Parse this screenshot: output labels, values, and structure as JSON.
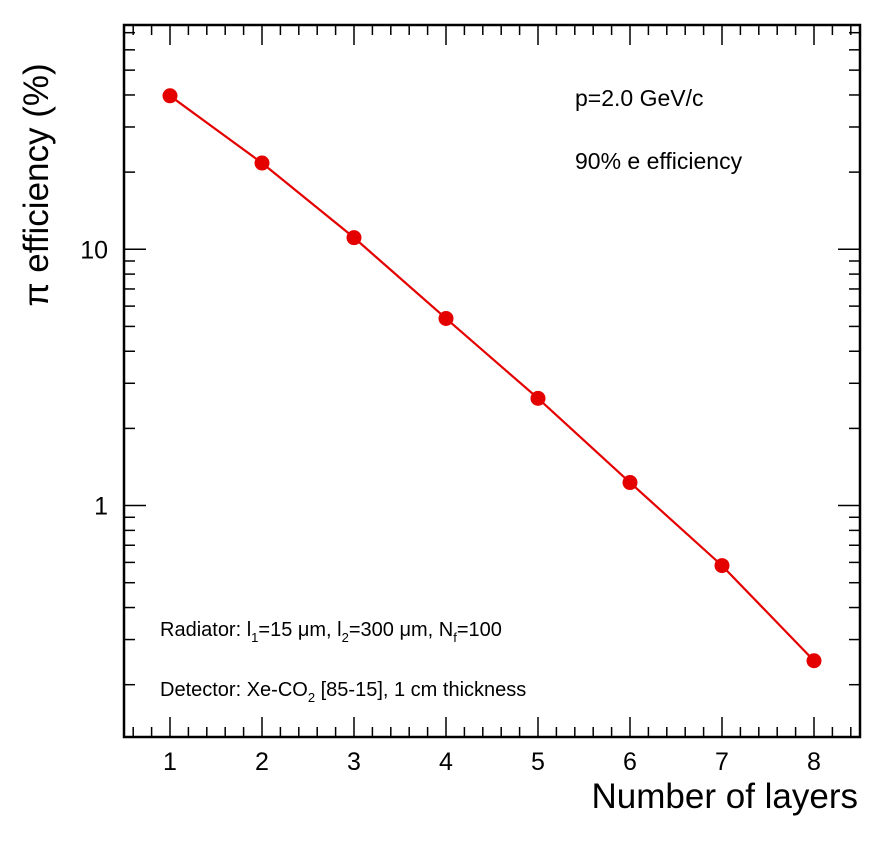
{
  "chart_data": {
    "type": "line",
    "x_label": "Number of layers",
    "y_label": "π efficiency (%)",
    "x": [
      1,
      2,
      3,
      4,
      5,
      6,
      7,
      8
    ],
    "series": [
      {
        "color": "#e50000",
        "values": [
          39.7,
          21.7,
          11.1,
          5.37,
          2.62,
          1.23,
          0.583,
          0.248
        ]
      }
    ],
    "xlim": [
      0.5,
      8.5
    ],
    "xticks": [
      1,
      2,
      3,
      4,
      5,
      6,
      7,
      8
    ],
    "xminorticks": [
      0.6,
      0.8,
      1.2,
      1.4,
      1.6,
      1.8,
      2.2,
      2.4,
      2.6,
      2.8,
      3.2,
      3.4,
      3.6,
      3.8,
      4.2,
      4.4,
      4.6,
      4.8,
      5.2,
      5.4,
      5.6,
      5.8,
      6.2,
      6.4,
      6.6,
      6.8,
      7.2,
      7.4,
      7.6,
      7.8,
      8.2,
      8.4
    ],
    "ylim": [
      0.125,
      75
    ],
    "yscale": "log",
    "yticks": [
      1,
      10
    ],
    "yminorticks": [
      0.2,
      0.3,
      0.4,
      0.5,
      0.6,
      0.7,
      0.8,
      0.9,
      2,
      3,
      4,
      5,
      6,
      7,
      8,
      9,
      20,
      30,
      40,
      50,
      60,
      70
    ],
    "annotations": [
      [
        {
          "text": "p=2.0 GeV/c"
        }
      ],
      [
        {
          "text": "90% e efficiency"
        }
      ],
      [
        {
          "text": "Radiator: l"
        },
        {
          "subscript": "1"
        },
        {
          "text": "=15 μm, l"
        },
        {
          "subscript": "2"
        },
        {
          "text": "=300 μm, N"
        },
        {
          "subscript": "f"
        },
        {
          "text": "=100"
        }
      ],
      [
        {
          "text": "Detector: Xe-CO"
        },
        {
          "subscript": "2"
        },
        {
          "text": " [85-15], 1 cm thickness"
        }
      ]
    ]
  }
}
